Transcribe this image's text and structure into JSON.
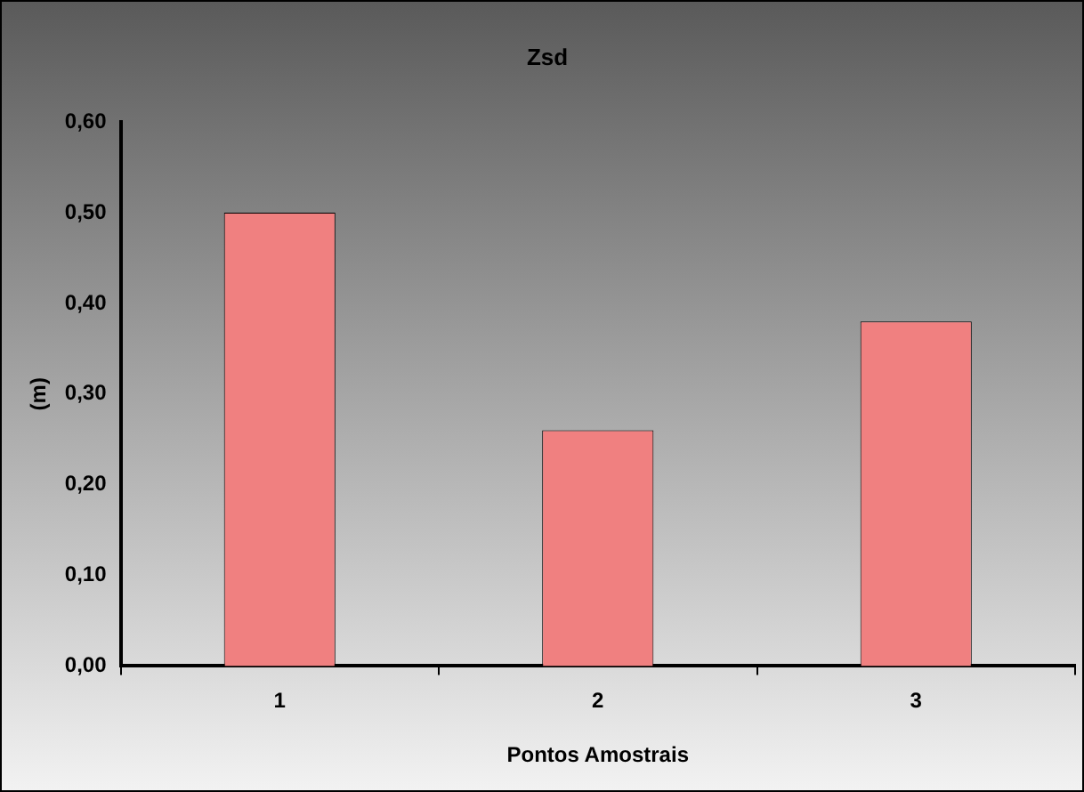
{
  "chart_data": {
    "type": "bar",
    "title": "Zsd",
    "xlabel": "Pontos Amostrais",
    "ylabel": "(m)",
    "categories": [
      "1",
      "2",
      "3"
    ],
    "values": [
      0.5,
      0.26,
      0.38
    ],
    "color": "#f08080",
    "ylim": [
      0,
      0.6
    ],
    "yticks": [
      {
        "value": 0,
        "label": "0,00"
      },
      {
        "value": 0.1,
        "label": "0,10"
      },
      {
        "value": 0.2,
        "label": "0,20"
      },
      {
        "value": 0.3,
        "label": "0,30"
      },
      {
        "value": 0.4,
        "label": "0,40"
      },
      {
        "value": 0.5,
        "label": "0,50"
      },
      {
        "value": 0.6,
        "label": "0,60"
      }
    ],
    "grid": false,
    "legend": false
  }
}
